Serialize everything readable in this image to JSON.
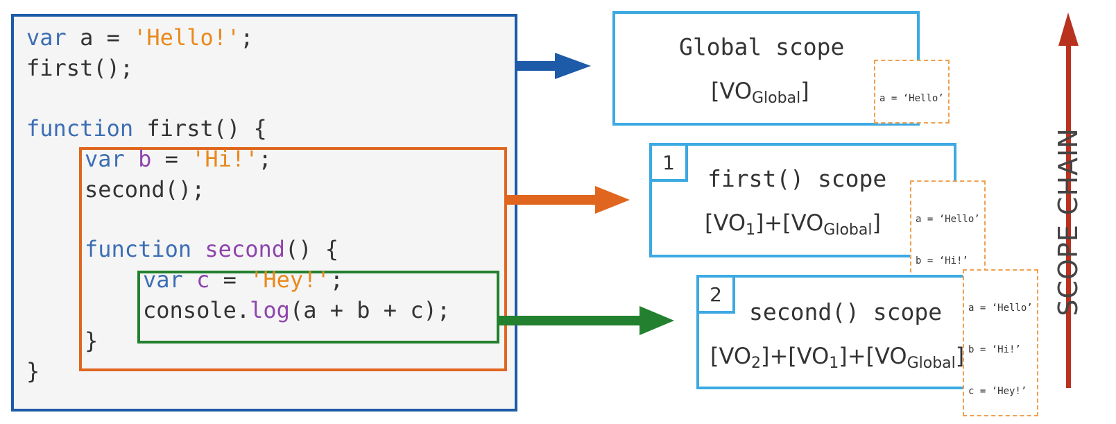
{
  "code": {
    "line1": {
      "kw": "var",
      "rest1": " a = ",
      "str": "'Hello!'",
      "rest2": ";"
    },
    "line2": "first();",
    "line3": {
      "kw": "function",
      "rest": " first() {"
    },
    "line4": {
      "kw": "var",
      "sp": " ",
      "v": "b",
      "eq": " = ",
      "str": "'Hi!'",
      "end": ";"
    },
    "line5": "second();",
    "line6": {
      "kw": "function",
      "sp": " ",
      "v": "second",
      "rest": "() {"
    },
    "line7": {
      "kw": "var",
      "sp": " ",
      "v": "c",
      "eq": " = ",
      "str": "'Hey!'",
      "end": ";"
    },
    "line8": {
      "a": "console.",
      "v": "log",
      "b": "(a + b + c);"
    },
    "line9": "}",
    "line10": "}"
  },
  "scopes": {
    "global": {
      "title": "Global scope",
      "vo_open": "[VO",
      "vo_sub": "Global",
      "vo_close": "]",
      "vars": [
        "a = ‘Hello’"
      ]
    },
    "first": {
      "badge": "1",
      "title": "first() scope",
      "vo1": "[VO",
      "vo1_sub": "1",
      "vo1_close": "]",
      "plus": "+",
      "vo2": "[VO",
      "vo2_sub": "Global",
      "vo2_close": "]",
      "vars": [
        "a = ‘Hello’",
        "b = ‘Hi!’"
      ]
    },
    "second": {
      "badge": "2",
      "title": "second() scope",
      "vo1": "[VO",
      "vo1_sub": "2",
      "vo1_close": "]",
      "plus": "+",
      "vo2": "[VO",
      "vo2_sub": "1",
      "vo2_close": "]",
      "plus2": "+",
      "vo3": "[VO",
      "vo3_sub": "Global",
      "vo3_close": "]",
      "vars": [
        "a = ‘Hello’",
        "b = ‘Hi!’",
        "c = ‘Hey!’"
      ]
    }
  },
  "scope_chain_label": "SCOPE CHAIN",
  "colors": {
    "global": "#1d5aa8",
    "first": "#e0661f",
    "second": "#22802e",
    "card_border": "#3ca9e2",
    "chain_arrow": "#b8321f"
  }
}
